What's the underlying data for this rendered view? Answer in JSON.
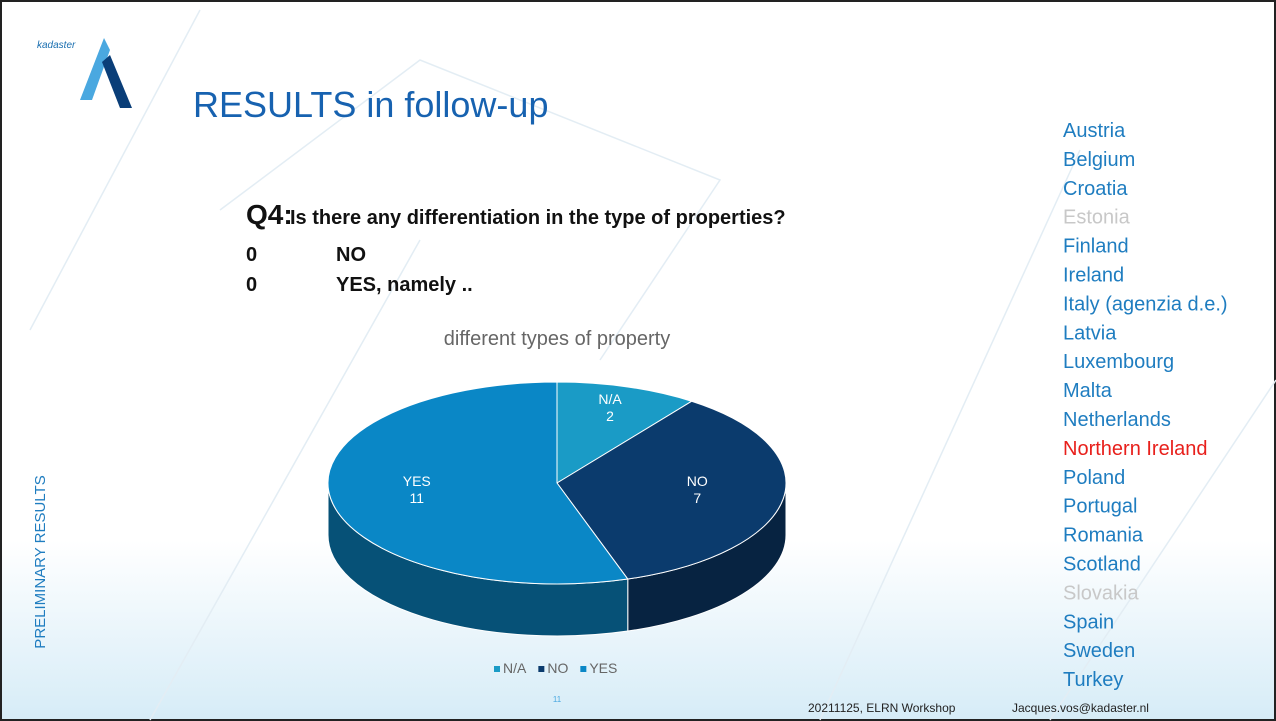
{
  "slide": {
    "logo": "kadaster",
    "title": "RESULTS in follow-up",
    "question_number": "Q4:",
    "question": "Is there any differentiation in the type of properties?",
    "options": [
      [
        "0",
        "NO"
      ],
      [
        "0",
        "YES, namely .."
      ]
    ],
    "side_label": "PRELIMINARY RESULTS",
    "page_number": "11",
    "footer_event": "20211125, ELRN Workshop",
    "footer_email": "Jacques.vos@kadaster.nl",
    "countries": [
      {
        "name": "Austria",
        "color": "#1f7dc0"
      },
      {
        "name": "Belgium",
        "color": "#1f7dc0"
      },
      {
        "name": "Croatia",
        "color": "#1f7dc0"
      },
      {
        "name": "Estonia",
        "color": "#c8c8c8"
      },
      {
        "name": "Finland",
        "color": "#1f7dc0"
      },
      {
        "name": "Ireland",
        "color": "#1f7dc0"
      },
      {
        "name": "Italy (agenzia d.e.)",
        "color": "#1f7dc0"
      },
      {
        "name": "Latvia",
        "color": "#1f7dc0"
      },
      {
        "name": "Luxembourg",
        "color": "#1f7dc0"
      },
      {
        "name": "Malta",
        "color": "#1f7dc0"
      },
      {
        "name": "Netherlands",
        "color": "#1f7dc0"
      },
      {
        "name": "Northern Ireland",
        "color": "#e8201c"
      },
      {
        "name": "Poland",
        "color": "#1f7dc0"
      },
      {
        "name": "Portugal",
        "color": "#1f7dc0"
      },
      {
        "name": "Romania",
        "color": "#1f7dc0"
      },
      {
        "name": "Scotland",
        "color": "#1f7dc0"
      },
      {
        "name": "Slovakia",
        "color": "#c8c8c8"
      },
      {
        "name": "Spain",
        "color": "#1f7dc0"
      },
      {
        "name": "Sweden",
        "color": "#1f7dc0"
      },
      {
        "name": "Turkey",
        "color": "#1f7dc0"
      }
    ]
  },
  "chart_data": {
    "type": "pie",
    "title": "different types of property",
    "categories": [
      "N/A",
      "NO",
      "YES"
    ],
    "values": [
      2,
      7,
      11
    ],
    "colors": [
      "#1a9bc6",
      "#0b3b6d",
      "#0a87c6"
    ],
    "legend": "bottom"
  }
}
